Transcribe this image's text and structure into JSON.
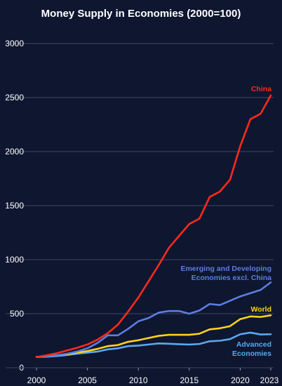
{
  "chart_data": {
    "type": "line",
    "title": "Money Supply in Economies (2000=100)",
    "xlabel": "",
    "ylabel": "",
    "xlim": [
      2000,
      2023
    ],
    "ylim": [
      0,
      3000
    ],
    "x_ticks": [
      "2000",
      "2005",
      "2010",
      "2015",
      "2020",
      "2023"
    ],
    "y_ticks": [
      "0",
      "500",
      "1000",
      "1500",
      "2000",
      "2500",
      "3000"
    ],
    "grid": "horizontal",
    "x": [
      2000,
      2001,
      2002,
      2003,
      2004,
      2005,
      2006,
      2007,
      2008,
      2009,
      2010,
      2011,
      2012,
      2013,
      2014,
      2015,
      2016,
      2017,
      2018,
      2019,
      2020,
      2021,
      2022,
      2023
    ],
    "series": [
      {
        "name": "China",
        "color": "#ff2a1a",
        "label_lines": [
          "China"
        ],
        "values": [
          100,
          115,
          135,
          160,
          185,
          215,
          260,
          320,
          400,
          520,
          650,
          800,
          950,
          1110,
          1220,
          1330,
          1380,
          1580,
          1630,
          1740,
          2050,
          2300,
          2350,
          2520
        ]
      },
      {
        "name": "Emerging and Developing Economies excl. China",
        "color": "#5b7ee0",
        "label_lines": [
          "Emerging and Developing",
          "Economies excl. China"
        ],
        "values": [
          100,
          105,
          115,
          130,
          150,
          180,
          230,
          300,
          300,
          360,
          430,
          460,
          510,
          525,
          525,
          500,
          530,
          590,
          580,
          620,
          660,
          690,
          720,
          790
        ]
      },
      {
        "name": "World",
        "color": "#ffd21a",
        "label_lines": [
          "World"
        ],
        "values": [
          100,
          105,
          115,
          125,
          140,
          155,
          175,
          200,
          210,
          240,
          255,
          275,
          295,
          305,
          305,
          305,
          315,
          355,
          365,
          385,
          450,
          475,
          470,
          485
        ]
      },
      {
        "name": "Advanced Economies",
        "color": "#5aa9ee",
        "label_lines": [
          "Advanced",
          "Economies"
        ],
        "values": [
          100,
          102,
          108,
          118,
          130,
          140,
          150,
          170,
          180,
          200,
          205,
          215,
          225,
          222,
          218,
          215,
          220,
          245,
          250,
          265,
          310,
          325,
          308,
          310
        ]
      }
    ]
  },
  "colors": {
    "background": "#0e1630",
    "text": "#ffffff",
    "grid": "#3d4560"
  }
}
